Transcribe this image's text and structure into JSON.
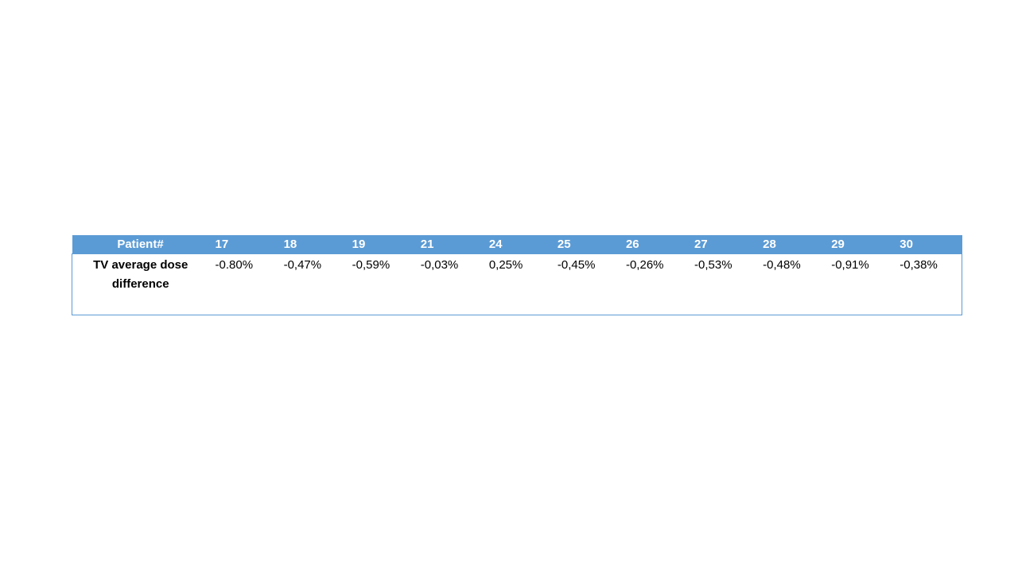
{
  "table": {
    "header": [
      "Patient#",
      "17",
      "18",
      "19",
      "21",
      "24",
      "25",
      "26",
      "27",
      "28",
      "29",
      "30"
    ],
    "rows": [
      [
        "TV average dose difference",
        "-0.80%",
        "-0,47%",
        "-0,59%",
        "-0,03%",
        "0,25%",
        "-0,45%",
        "-0,26%",
        "-0,53%",
        "-0,48%",
        "-0,91%",
        "-0,38%"
      ]
    ]
  }
}
